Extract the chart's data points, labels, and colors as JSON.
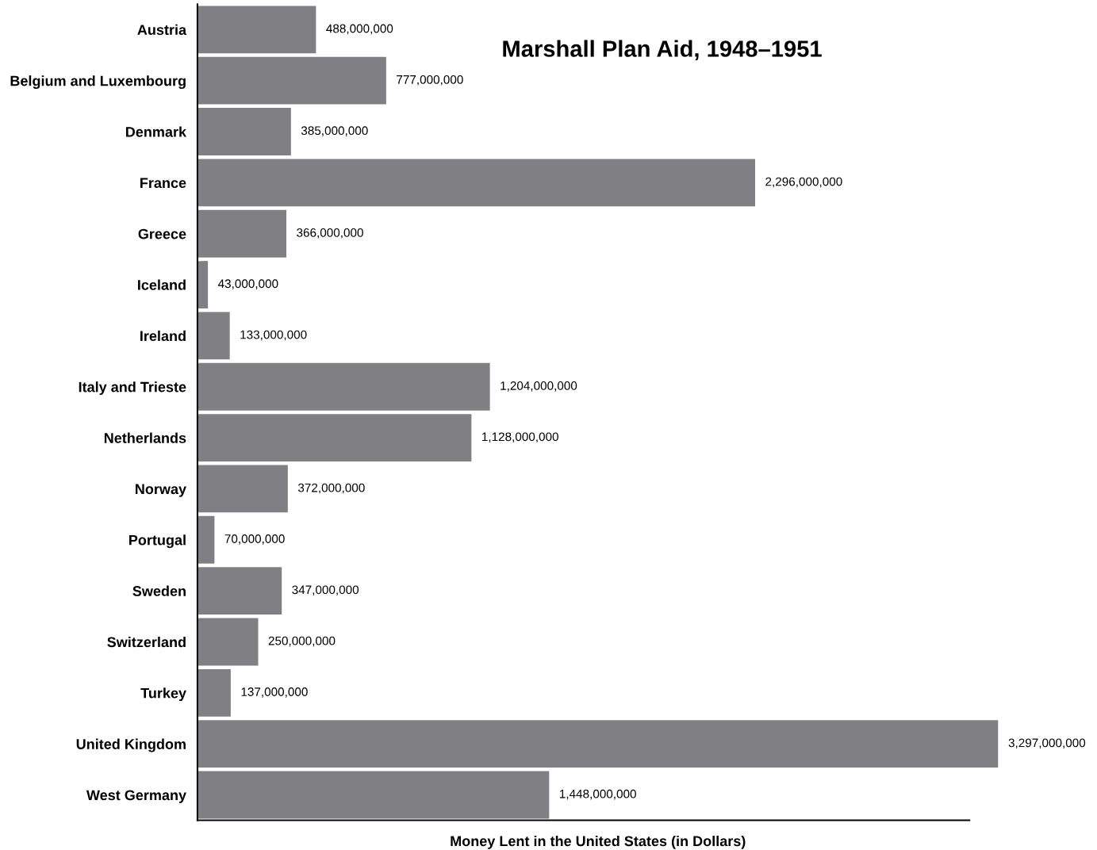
{
  "chart_data": {
    "type": "bar",
    "orientation": "horizontal",
    "title": "Marshall Plan Aid, 1948–1951",
    "xlabel": "Money Lent in the United States (in Dollars)",
    "categories": [
      "Austria",
      "Belgium and Luxembourg",
      "Denmark",
      "France",
      "Greece",
      "Iceland",
      "Ireland",
      "Italy and Trieste",
      "Netherlands",
      "Norway",
      "Portugal",
      "Sweden",
      "Switzerland",
      "Turkey",
      "United Kingdom",
      "West Germany"
    ],
    "values": [
      488000000,
      777000000,
      385000000,
      2296000000,
      366000000,
      43000000,
      133000000,
      1204000000,
      1128000000,
      372000000,
      70000000,
      347000000,
      250000000,
      137000000,
      3297000000,
      1448000000
    ],
    "value_labels": [
      "488,000,000",
      "777,000,000",
      "385,000,000",
      "2,296,000,000",
      "366,000,000",
      "43,000,000",
      "133,000,000",
      "1,204,000,000",
      "1,128,000,000",
      "372,000,000",
      "70,000,000",
      "347,000,000",
      "250,000,000",
      "137,000,000",
      "3,297,000,000",
      "1,448,000,000"
    ],
    "color": "#808084",
    "tick_labels": "y"
  }
}
